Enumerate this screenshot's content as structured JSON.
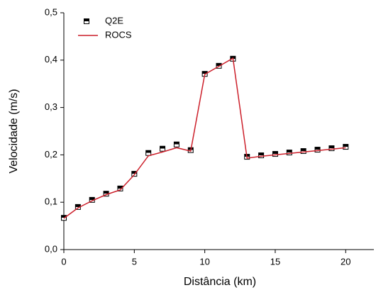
{
  "chart_data": {
    "type": "line",
    "x_label": "Distância (km)",
    "y_label": "Velocidade (m/s)",
    "x": [
      0,
      1,
      2,
      3,
      4,
      5,
      6,
      7,
      8,
      9,
      10,
      11,
      12,
      13,
      14,
      15,
      16,
      17,
      18,
      19,
      20
    ],
    "series": [
      {
        "name": "Q2E",
        "color": "#000000",
        "style": "marker",
        "values": [
          0.067,
          0.09,
          0.105,
          0.118,
          0.129,
          0.16,
          0.204,
          0.213,
          0.222,
          0.21,
          0.371,
          0.388,
          0.403,
          0.196,
          0.199,
          0.202,
          0.205,
          0.208,
          0.211,
          0.214,
          0.217
        ]
      },
      {
        "name": "ROCS",
        "color": "#cc1f2a",
        "style": "line",
        "values": [
          0.066,
          0.088,
          0.103,
          0.116,
          0.126,
          0.158,
          0.198,
          0.206,
          0.215,
          0.208,
          0.37,
          0.387,
          0.404,
          0.193,
          0.197,
          0.2,
          0.203,
          0.206,
          0.209,
          0.212,
          0.215
        ]
      }
    ],
    "xlim": [
      0,
      22
    ],
    "xticks": [
      0,
      5,
      10,
      15,
      20
    ],
    "ylim": [
      0,
      0.5
    ],
    "yticks": [
      {
        "value": 0,
        "label": "0,0"
      },
      {
        "value": 0.1,
        "label": "0,1"
      },
      {
        "value": 0.2,
        "label": "0,2"
      },
      {
        "value": 0.3,
        "label": "0,3"
      },
      {
        "value": 0.4,
        "label": "0,4"
      },
      {
        "value": 0.5,
        "label": "0,5"
      }
    ],
    "legend": "top-left",
    "grid": false
  }
}
